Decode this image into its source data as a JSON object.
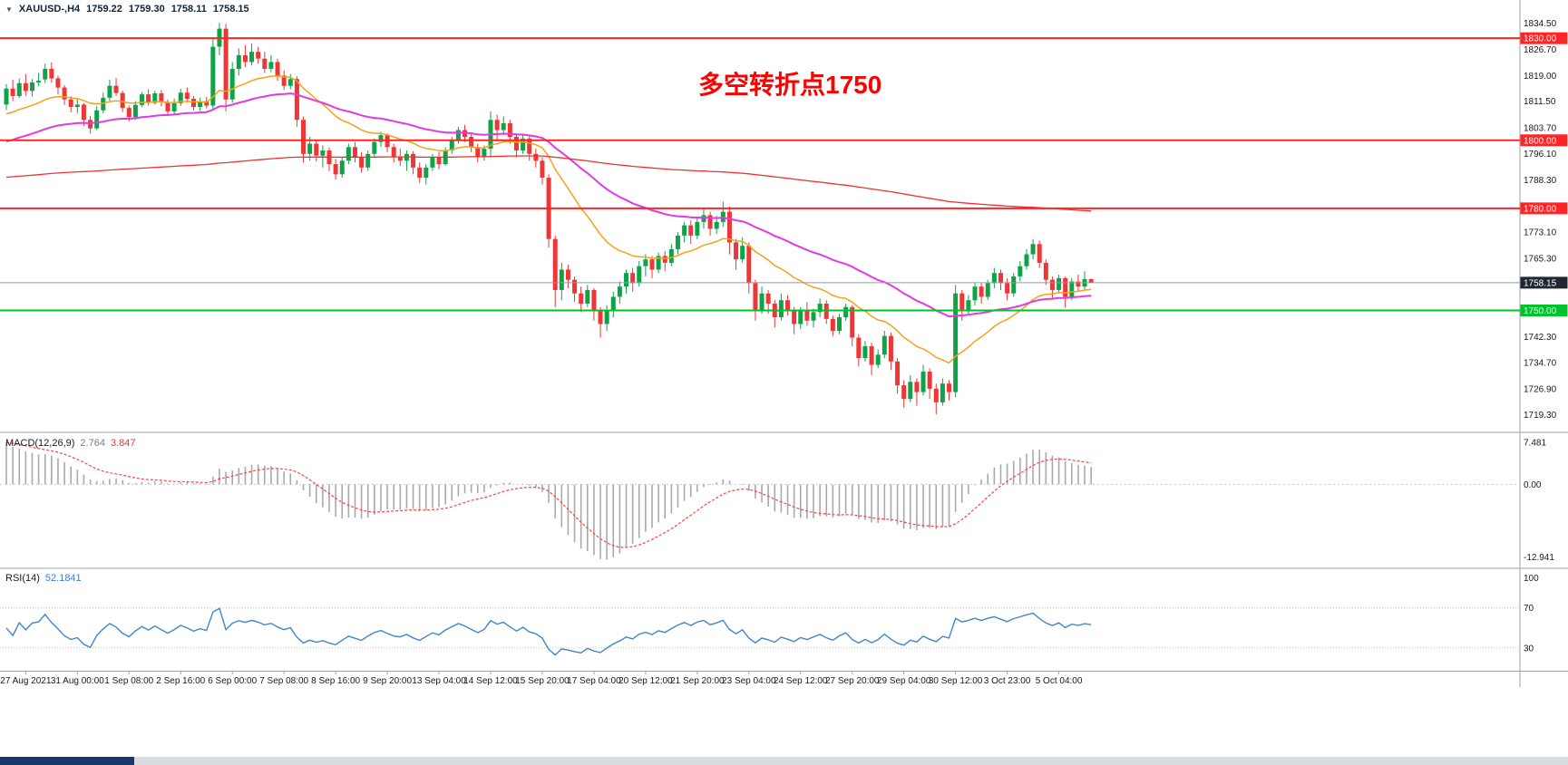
{
  "header": {
    "dropdown_icon": "▼",
    "symbol": "XAUUSD-,H4",
    "open": "1759.22",
    "high": "1759.30",
    "low": "1758.11",
    "close": "1758.15"
  },
  "annotation": {
    "text": "多空转折点1750",
    "color": "#ff0000"
  },
  "indicators": {
    "macd": {
      "label": "MACD(12,26,9)",
      "main_value": "2.764",
      "signal_value": "3.847",
      "axis_labels": [
        "7.481",
        "0.00",
        "-12.941"
      ]
    },
    "rsi": {
      "label": "RSI(14)",
      "value": "52.1841",
      "axis_labels": [
        "100",
        "70",
        "30"
      ]
    }
  },
  "colors": {
    "bull": "#0fa348",
    "bear": "#ef3535",
    "ma_fast": "#f5a21b",
    "ma_mid": "#e23ae2",
    "ma_slow": "#f03030",
    "hline_red": "#ff2525",
    "hline_green": "#00c32b",
    "current_line": "#8a9bb0",
    "current_badge_bg": "#1f2832",
    "macd_hist": "#a9a9a9",
    "macd_signal": "#ff4040",
    "rsi_line": "#4286c9",
    "axis_text": "#1a1a1a",
    "separator": "#a3a3a3",
    "badge_text": "#ffffff"
  },
  "footer": {
    "accent_bg": "#16386e",
    "bar_bg": "#d8dce0"
  },
  "chart_data": [
    {
      "type": "candlestick",
      "title": "XAUUSD-,H4",
      "timeframe": "H4",
      "ylim": [
        1715.5,
        1837.5
      ],
      "y_ticks": [
        "1834.50",
        "1826.70",
        "1819.00",
        "1811.50",
        "1803.70",
        "1796.10",
        "1788.30",
        "1773.10",
        "1765.30",
        "1742.30",
        "1734.70",
        "1726.90",
        "1719.30"
      ],
      "horizontal_lines": [
        {
          "price": 1830.0,
          "label": "1830.00",
          "color": "red"
        },
        {
          "price": 1800.0,
          "label": "1800.00",
          "color": "red"
        },
        {
          "price": 1780.0,
          "label": "1780.00",
          "color": "red"
        },
        {
          "price": 1750.0,
          "label": "1750.00",
          "color": "green"
        }
      ],
      "current_price": {
        "price": 1758.15,
        "label": "1758.15"
      },
      "moving_averages": [
        {
          "name": "ma-orange",
          "period": 20,
          "seed": 1807,
          "color_key": "ma_fast",
          "width": 1.5
        },
        {
          "name": "ma-magenta",
          "period": 50,
          "seed": 1799,
          "color_key": "ma_mid",
          "width": 2
        },
        {
          "name": "ma-red",
          "period": 350,
          "seed": 1789,
          "color_key": "ma_slow",
          "width": 1.3
        }
      ],
      "x_label_start_bar": 3,
      "x_label_step_bars": 8,
      "x_labels": [
        "27 Aug 2021",
        "31 Aug 00:00",
        "1 Sep 08:00",
        "2 Sep 16:00",
        "6 Sep 00:00",
        "7 Sep 08:00",
        "8 Sep 16:00",
        "9 Sep 20:00",
        "13 Sep 04:00",
        "14 Sep 12:00",
        "15 Sep 20:00",
        "17 Sep 04:00",
        "20 Sep 12:00",
        "21 Sep 20:00",
        "23 Sep 04:00",
        "24 Sep 12:00",
        "27 Sep 20:00",
        "29 Sep 04:00",
        "30 Sep 12:00",
        "3 Oct 23:00",
        "5 Oct 04:00"
      ],
      "candles": [
        [
          1810.5,
          1816.5,
          1808.9,
          1815.2
        ],
        [
          1815.2,
          1817.8,
          1811.5,
          1813.0
        ],
        [
          1813.0,
          1818.2,
          1812.4,
          1816.8
        ],
        [
          1816.8,
          1819.5,
          1813.1,
          1814.5
        ],
        [
          1814.5,
          1818.0,
          1812.8,
          1817.0
        ],
        [
          1817.0,
          1819.8,
          1815.9,
          1817.5
        ],
        [
          1817.9,
          1822.5,
          1816.8,
          1821.0
        ],
        [
          1821.0,
          1822.9,
          1817.0,
          1818.2
        ],
        [
          1818.2,
          1819.0,
          1813.5,
          1815.5
        ],
        [
          1815.5,
          1816.2,
          1810.4,
          1812.0
        ],
        [
          1812.0,
          1813.0,
          1808.2,
          1809.8
        ],
        [
          1809.8,
          1812.1,
          1808.0,
          1810.5
        ],
        [
          1810.5,
          1811.0,
          1804.2,
          1806.0
        ],
        [
          1806.0,
          1807.2,
          1802.0,
          1803.5
        ],
        [
          1803.5,
          1810.0,
          1803.0,
          1808.8
        ],
        [
          1808.8,
          1814.0,
          1807.9,
          1812.5
        ],
        [
          1812.5,
          1817.8,
          1811.6,
          1816.0
        ],
        [
          1816.0,
          1818.3,
          1813.0,
          1813.9
        ],
        [
          1813.9,
          1814.6,
          1808.3,
          1809.5
        ],
        [
          1809.5,
          1810.2,
          1805.5,
          1806.8
        ],
        [
          1806.8,
          1811.5,
          1806.0,
          1810.4
        ],
        [
          1810.4,
          1814.2,
          1809.8,
          1813.5
        ],
        [
          1813.5,
          1815.0,
          1810.2,
          1811.0
        ],
        [
          1811.0,
          1814.5,
          1810.5,
          1813.8
        ],
        [
          1813.8,
          1814.8,
          1810.0,
          1811.2
        ],
        [
          1811.2,
          1812.0,
          1807.3,
          1808.5
        ],
        [
          1808.5,
          1812.2,
          1807.8,
          1810.9
        ],
        [
          1810.9,
          1815.1,
          1810.1,
          1814.0
        ],
        [
          1814.0,
          1815.5,
          1811.0,
          1812.2
        ],
        [
          1812.2,
          1813.0,
          1808.8,
          1809.8
        ],
        [
          1809.8,
          1812.5,
          1808.6,
          1811.5
        ],
        [
          1811.5,
          1812.8,
          1809.4,
          1810.2
        ],
        [
          1810.2,
          1830.0,
          1809.0,
          1827.5
        ],
        [
          1827.5,
          1834.5,
          1825.0,
          1832.8
        ],
        [
          1832.8,
          1834.2,
          1808.5,
          1812.0
        ],
        [
          1812.0,
          1823.0,
          1811.0,
          1821.0
        ],
        [
          1821.0,
          1827.0,
          1819.0,
          1825.0
        ],
        [
          1825.0,
          1828.0,
          1821.5,
          1823.0
        ],
        [
          1823.0,
          1828.5,
          1822.0,
          1826.0
        ],
        [
          1826.0,
          1827.5,
          1822.5,
          1824.0
        ],
        [
          1824.0,
          1826.0,
          1819.8,
          1821.0
        ],
        [
          1821.0,
          1825.0,
          1820.0,
          1823.0
        ],
        [
          1823.0,
          1824.0,
          1817.5,
          1819.0
        ],
        [
          1819.0,
          1820.5,
          1814.8,
          1816.0
        ],
        [
          1816.0,
          1819.5,
          1815.0,
          1818.0
        ],
        [
          1818.0,
          1818.8,
          1804.0,
          1806.0
        ],
        [
          1806.0,
          1807.0,
          1793.5,
          1796.0
        ],
        [
          1796.0,
          1801.0,
          1794.0,
          1799.0
        ],
        [
          1799.0,
          1800.2,
          1793.8,
          1795.5
        ],
        [
          1795.5,
          1798.5,
          1792.0,
          1797.0
        ],
        [
          1797.0,
          1797.8,
          1791.0,
          1793.0
        ],
        [
          1793.0,
          1794.5,
          1788.5,
          1790.0
        ],
        [
          1790.0,
          1795.0,
          1789.0,
          1794.0
        ],
        [
          1794.0,
          1799.0,
          1793.0,
          1798.0
        ],
        [
          1798.0,
          1799.5,
          1793.5,
          1795.0
        ],
        [
          1795.0,
          1796.5,
          1790.5,
          1792.0
        ],
        [
          1792.0,
          1797.0,
          1791.0,
          1796.0
        ],
        [
          1796.0,
          1800.5,
          1795.0,
          1799.5
        ],
        [
          1799.5,
          1802.5,
          1798.0,
          1801.5
        ],
        [
          1801.5,
          1802.0,
          1796.5,
          1798.0
        ],
        [
          1798.0,
          1799.0,
          1793.5,
          1795.0
        ],
        [
          1795.0,
          1797.5,
          1792.5,
          1794.0
        ],
        [
          1794.0,
          1797.0,
          1791.0,
          1796.0
        ],
        [
          1796.0,
          1796.8,
          1790.0,
          1792.0
        ],
        [
          1792.0,
          1793.5,
          1787.5,
          1789.0
        ],
        [
          1789.0,
          1793.0,
          1787.0,
          1792.0
        ],
        [
          1792.0,
          1796.0,
          1791.0,
          1795.0
        ],
        [
          1795.0,
          1796.5,
          1791.5,
          1793.0
        ],
        [
          1793.0,
          1798.0,
          1792.5,
          1797.0
        ],
        [
          1797.0,
          1801.0,
          1796.0,
          1800.0
        ],
        [
          1800.0,
          1804.0,
          1799.0,
          1803.0
        ],
        [
          1803.0,
          1804.5,
          1799.5,
          1801.0
        ],
        [
          1801.0,
          1802.0,
          1796.5,
          1798.0
        ],
        [
          1798.0,
          1799.0,
          1793.5,
          1795.0
        ],
        [
          1795.0,
          1798.5,
          1794.0,
          1797.5
        ],
        [
          1797.5,
          1808.5,
          1795.0,
          1806.0
        ],
        [
          1806.0,
          1807.5,
          1800.0,
          1803.0
        ],
        [
          1803.0,
          1807.0,
          1801.5,
          1805.0
        ],
        [
          1805.0,
          1806.0,
          1799.0,
          1801.0
        ],
        [
          1801.0,
          1802.0,
          1795.0,
          1797.0
        ],
        [
          1797.0,
          1802.0,
          1796.0,
          1800.5
        ],
        [
          1800.5,
          1801.5,
          1794.0,
          1796.0
        ],
        [
          1796.0,
          1797.5,
          1792.0,
          1794.0
        ],
        [
          1794.0,
          1795.0,
          1787.0,
          1789.0
        ],
        [
          1789.0,
          1790.0,
          1768.5,
          1771.0
        ],
        [
          1771.0,
          1772.0,
          1751.0,
          1756.0
        ],
        [
          1756.0,
          1764.0,
          1753.0,
          1762.0
        ],
        [
          1762.0,
          1763.5,
          1756.5,
          1759.0
        ],
        [
          1759.0,
          1760.0,
          1752.5,
          1755.0
        ],
        [
          1755.0,
          1757.0,
          1749.5,
          1752.0
        ],
        [
          1752.0,
          1757.5,
          1751.0,
          1756.0
        ],
        [
          1756.0,
          1756.5,
          1747.0,
          1750.0
        ],
        [
          1750.0,
          1751.0,
          1742.0,
          1746.0
        ],
        [
          1746.0,
          1751.5,
          1744.0,
          1750.0
        ],
        [
          1750.0,
          1755.5,
          1748.0,
          1754.0
        ],
        [
          1754.0,
          1758.5,
          1752.0,
          1757.0
        ],
        [
          1757.0,
          1762.0,
          1755.0,
          1761.0
        ],
        [
          1761.0,
          1762.5,
          1755.5,
          1758.0
        ],
        [
          1758.0,
          1764.5,
          1757.0,
          1763.0
        ],
        [
          1763.0,
          1766.5,
          1760.0,
          1765.0
        ],
        [
          1765.0,
          1766.0,
          1759.5,
          1762.0
        ],
        [
          1762.0,
          1767.0,
          1761.0,
          1766.0
        ],
        [
          1766.0,
          1767.5,
          1761.5,
          1764.0
        ],
        [
          1764.0,
          1769.5,
          1763.0,
          1768.0
        ],
        [
          1768.0,
          1773.0,
          1766.5,
          1772.0
        ],
        [
          1772.0,
          1776.0,
          1770.0,
          1775.0
        ],
        [
          1775.0,
          1776.5,
          1769.5,
          1772.0
        ],
        [
          1772.0,
          1777.5,
          1771.0,
          1776.0
        ],
        [
          1776.0,
          1779.8,
          1774.0,
          1778.0
        ],
        [
          1778.0,
          1779.0,
          1772.0,
          1774.0
        ],
        [
          1774.0,
          1777.8,
          1772.5,
          1776.0
        ],
        [
          1776.0,
          1782.0,
          1774.5,
          1779.0
        ],
        [
          1779.0,
          1780.5,
          1766.5,
          1770.0
        ],
        [
          1770.0,
          1771.0,
          1762.0,
          1765.0
        ],
        [
          1765.0,
          1771.5,
          1764.0,
          1769.0
        ],
        [
          1769.0,
          1770.0,
          1755.0,
          1758.0
        ],
        [
          1758.0,
          1759.0,
          1747.0,
          1750.0
        ],
        [
          1750.0,
          1757.0,
          1749.0,
          1755.0
        ],
        [
          1755.0,
          1756.0,
          1749.0,
          1752.0
        ],
        [
          1752.0,
          1753.0,
          1745.0,
          1748.0
        ],
        [
          1748.0,
          1755.0,
          1747.0,
          1753.0
        ],
        [
          1753.0,
          1754.5,
          1748.5,
          1750.0
        ],
        [
          1750.0,
          1751.0,
          1743.0,
          1746.0
        ],
        [
          1746.0,
          1751.0,
          1744.5,
          1750.0
        ],
        [
          1750.0,
          1752.5,
          1745.5,
          1747.0
        ],
        [
          1747.0,
          1750.5,
          1745.0,
          1749.5
        ],
        [
          1749.5,
          1753.5,
          1748.0,
          1752.0
        ],
        [
          1752.0,
          1753.0,
          1746.0,
          1747.5
        ],
        [
          1747.5,
          1748.5,
          1742.5,
          1744.0
        ],
        [
          1744.0,
          1749.0,
          1743.0,
          1748.0
        ],
        [
          1748.0,
          1752.0,
          1747.0,
          1751.0
        ],
        [
          1751.0,
          1751.5,
          1739.5,
          1742.0
        ],
        [
          1742.0,
          1743.0,
          1733.5,
          1736.0
        ],
        [
          1736.0,
          1741.0,
          1735.0,
          1739.5
        ],
        [
          1739.5,
          1740.5,
          1731.0,
          1734.0
        ],
        [
          1734.0,
          1738.5,
          1733.0,
          1737.0
        ],
        [
          1737.0,
          1744.0,
          1736.0,
          1742.5
        ],
        [
          1742.5,
          1743.5,
          1732.5,
          1735.0
        ],
        [
          1735.0,
          1736.0,
          1725.5,
          1728.0
        ],
        [
          1728.0,
          1729.5,
          1721.5,
          1724.0
        ],
        [
          1724.0,
          1731.0,
          1723.0,
          1729.0
        ],
        [
          1729.0,
          1730.0,
          1722.0,
          1726.0
        ],
        [
          1726.0,
          1734.0,
          1725.0,
          1732.0
        ],
        [
          1732.0,
          1733.0,
          1724.0,
          1727.0
        ],
        [
          1727.0,
          1728.5,
          1719.5,
          1723.0
        ],
        [
          1723.0,
          1730.0,
          1722.0,
          1728.5
        ],
        [
          1728.5,
          1729.5,
          1723.5,
          1726.0
        ],
        [
          1726.0,
          1757.5,
          1724.5,
          1755.0
        ],
        [
          1755.0,
          1756.0,
          1747.0,
          1750.0
        ],
        [
          1750.0,
          1754.5,
          1748.5,
          1753.0
        ],
        [
          1753.0,
          1758.0,
          1751.5,
          1757.0
        ],
        [
          1757.0,
          1758.0,
          1752.0,
          1754.0
        ],
        [
          1754.0,
          1759.0,
          1753.0,
          1758.0
        ],
        [
          1758.0,
          1762.5,
          1756.5,
          1761.0
        ],
        [
          1761.0,
          1762.0,
          1756.0,
          1758.0
        ],
        [
          1758.0,
          1759.5,
          1753.0,
          1755.0
        ],
        [
          1755.0,
          1761.0,
          1754.0,
          1760.0
        ],
        [
          1760.0,
          1764.5,
          1758.5,
          1763.0
        ],
        [
          1763.0,
          1768.0,
          1762.0,
          1766.5
        ],
        [
          1766.5,
          1771.0,
          1765.0,
          1769.5
        ],
        [
          1769.5,
          1770.5,
          1762.5,
          1764.0
        ],
        [
          1764.0,
          1765.0,
          1757.5,
          1759.0
        ],
        [
          1759.0,
          1760.0,
          1753.5,
          1756.0
        ],
        [
          1756.0,
          1760.5,
          1755.0,
          1759.5
        ],
        [
          1759.5,
          1760.0,
          1750.8,
          1754.0
        ],
        [
          1754.0,
          1759.5,
          1753.0,
          1758.5
        ],
        [
          1758.5,
          1760.5,
          1755.5,
          1757.0
        ],
        [
          1757.0,
          1761.5,
          1756.0,
          1759.2
        ],
        [
          1759.22,
          1759.3,
          1758.11,
          1758.15
        ]
      ]
    },
    {
      "type": "bar",
      "name": "MACD",
      "fast": 12,
      "slow": 26,
      "signal": 9,
      "seed_fast": 1815,
      "seed_slow": 1807,
      "ylim": [
        -14.6,
        8.6
      ],
      "y_ticks": [
        "7.481",
        "0.00",
        "-12.941"
      ],
      "current_main": 2.764,
      "current_signal": 3.847
    },
    {
      "type": "line",
      "name": "RSI",
      "period": 14,
      "ylim": [
        8,
        107
      ],
      "levels": [
        70,
        30
      ],
      "y_ticks": [
        "100",
        "70",
        "30"
      ],
      "current": 52.1841
    }
  ]
}
